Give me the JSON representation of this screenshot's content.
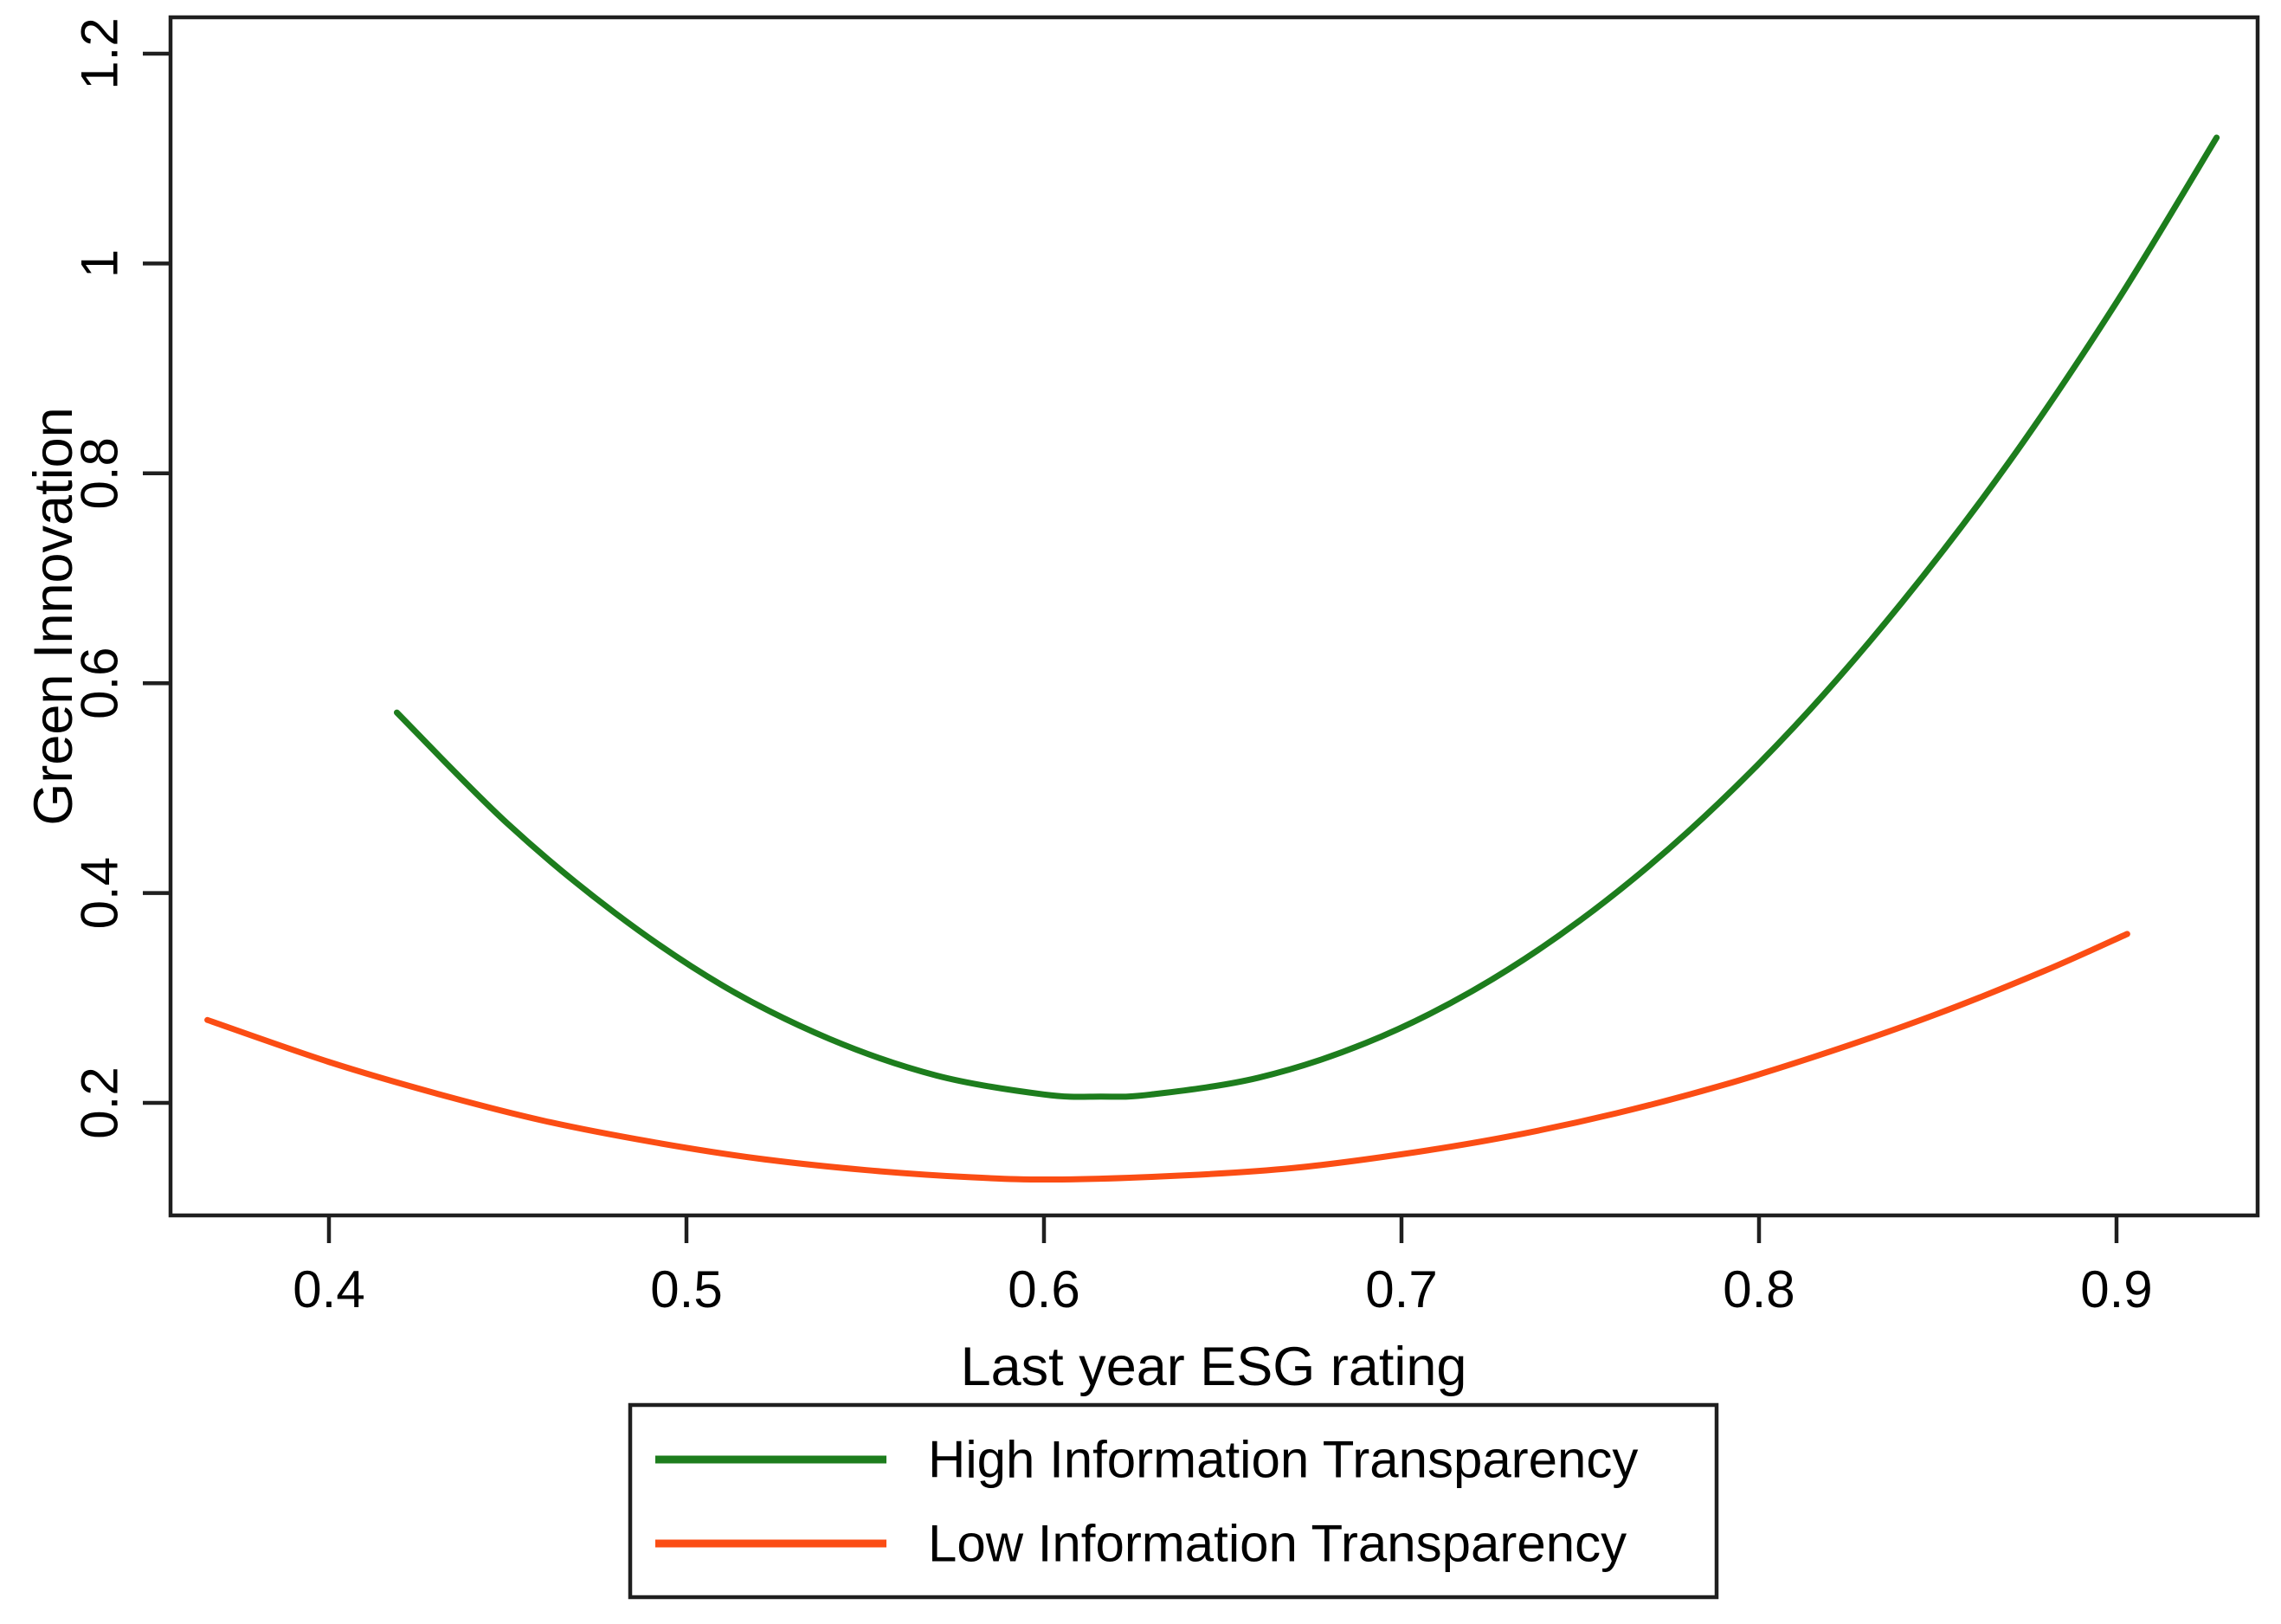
{
  "chart_data": {
    "type": "line",
    "title": "",
    "xlabel": "Last year ESG rating",
    "ylabel": "Green Innovation",
    "xlim": [
      0.35569,
      0.93947
    ],
    "ylim": [
      0.09274,
      1.23465
    ],
    "grid": false,
    "legend_position": "bottom-center",
    "x_ticks": {
      "values": [
        0.4,
        0.5,
        0.6,
        0.7,
        0.8,
        0.9
      ],
      "labels": [
        "0.4",
        "0.5",
        "0.6",
        "0.7",
        "0.8",
        "0.9"
      ]
    },
    "y_ticks": {
      "values": [
        0.2,
        0.4,
        0.6,
        0.8,
        1.0,
        1.2
      ],
      "labels": [
        "0.2",
        "0.4",
        "0.6",
        "0.8",
        "1",
        "1.2"
      ]
    },
    "series": [
      {
        "name": "High Information Transparency",
        "color": "#1d7d1d",
        "shape": "u-curve, minimum near x=0.62 y=0.21",
        "x": [
          0.419,
          0.45,
          0.48,
          0.51,
          0.54,
          0.57,
          0.6,
          0.616,
          0.63,
          0.66,
          0.69,
          0.72,
          0.75,
          0.78,
          0.81,
          0.84,
          0.87,
          0.9,
          0.928
        ],
        "y": [
          0.572,
          0.466,
          0.381,
          0.312,
          0.261,
          0.226,
          0.208,
          0.206,
          0.208,
          0.224,
          0.257,
          0.307,
          0.374,
          0.458,
          0.559,
          0.677,
          0.811,
          0.963,
          1.12
        ]
      },
      {
        "name": "Low Information Transparency",
        "color": "#fb4d14",
        "shape": "shallow u-curve, minimum near x=0.61 y=0.13",
        "x": [
          0.366,
          0.4,
          0.43,
          0.46,
          0.49,
          0.52,
          0.55,
          0.58,
          0.605,
          0.64,
          0.67,
          0.7,
          0.73,
          0.76,
          0.79,
          0.82,
          0.85,
          0.88,
          0.903
        ],
        "y": [
          0.279,
          0.239,
          0.209,
          0.183,
          0.163,
          0.147,
          0.136,
          0.129,
          0.127,
          0.131,
          0.138,
          0.151,
          0.168,
          0.19,
          0.217,
          0.249,
          0.285,
          0.326,
          0.361
        ]
      }
    ]
  },
  "colors": {
    "axis": "#1f1f1f",
    "text": "#000000",
    "background": "#ffffff",
    "legend_border": "#1f1f1f"
  }
}
